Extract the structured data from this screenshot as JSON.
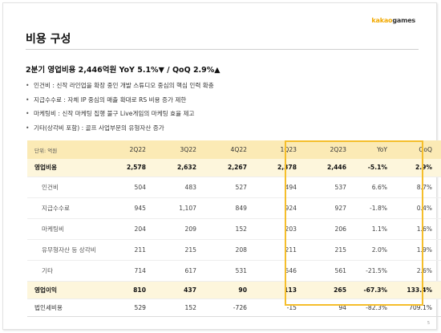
{
  "brand": {
    "part1": "kakao",
    "part2": "games"
  },
  "page_title": "비용 구성",
  "headline": "2분기 영업비용 2,446억원 YoY 5.1%▼ / QoQ 2.9%▲",
  "bullets": [
    "인건비 : 신작 라인업을 확장 중인 개발 스튜디오 중심의 핵심 인력 확충",
    "지급수수료 : 자체 IP 중심의 매출 확대로 RS 비용 증가 제한",
    "마케팅비 : 신작 마케팅 집행 불구 Live게임의 마케팅 효율 제고",
    "기타(상각비 포함) : 골프 사업부문의 유형자산 증가"
  ],
  "table": {
    "headers": [
      "단위: 억원",
      "2Q22",
      "3Q22",
      "4Q22",
      "1Q23",
      "2Q23",
      "YoY",
      "QoQ"
    ],
    "rows": [
      {
        "style": "major",
        "cells": [
          "영업비용",
          "2,578",
          "2,632",
          "2,267",
          "2,378",
          "2,446",
          "-5.1%",
          "2.9%"
        ]
      },
      {
        "style": "sub",
        "cells": [
          "인건비",
          "504",
          "483",
          "527",
          "494",
          "537",
          "6.6%",
          "8.7%"
        ]
      },
      {
        "style": "sub",
        "cells": [
          "지급수수료",
          "945",
          "1,107",
          "849",
          "924",
          "927",
          "-1.8%",
          "0.4%"
        ]
      },
      {
        "style": "sub",
        "cells": [
          "마케팅비",
          "204",
          "209",
          "152",
          "203",
          "206",
          "1.1%",
          "1.6%"
        ]
      },
      {
        "style": "sub",
        "cells": [
          "유무형자산 등 상각비",
          "211",
          "215",
          "208",
          "211",
          "215",
          "2.0%",
          "1.9%"
        ]
      },
      {
        "style": "sub",
        "cells": [
          "기타",
          "714",
          "617",
          "531",
          "546",
          "561",
          "-21.5%",
          "2.6%"
        ]
      },
      {
        "style": "major",
        "cells": [
          "영업이익",
          "810",
          "437",
          "90",
          "113",
          "265",
          "-67.3%",
          "133.4%"
        ]
      },
      {
        "style": "plain",
        "cells": [
          "법인세비용",
          "529",
          "152",
          "-726",
          "-15",
          "94",
          "-82.3%",
          "709.1%"
        ]
      }
    ]
  },
  "page_number": "5"
}
